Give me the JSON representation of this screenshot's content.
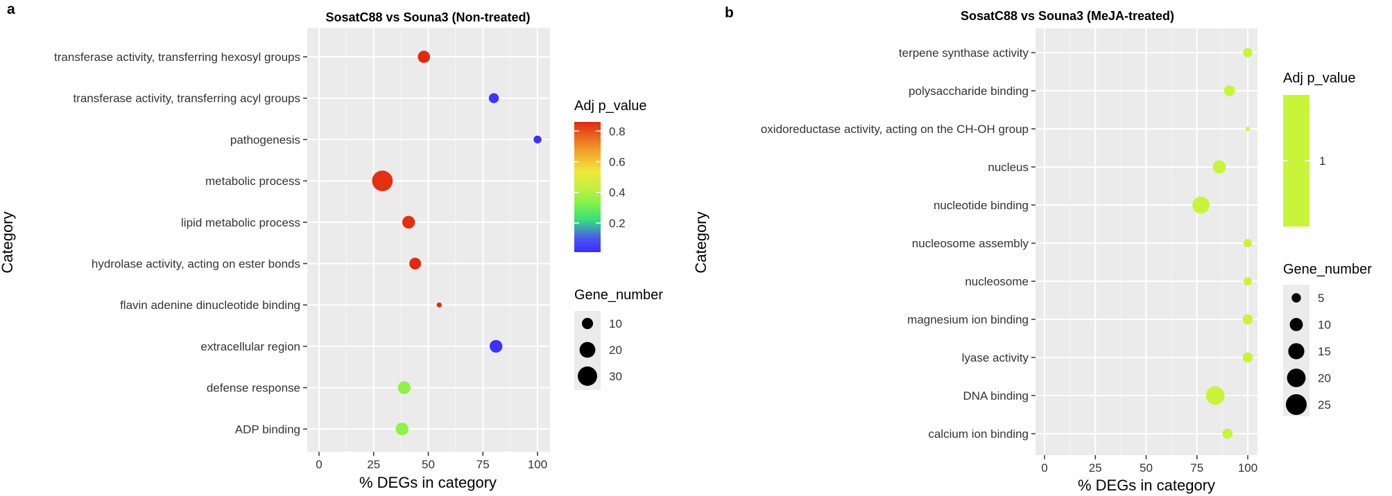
{
  "chart_data": [
    {
      "panel": "a",
      "type": "scatter",
      "title": "SosatC88 vs Souna3 (Non-treated)",
      "xlabel": "% DEGs in category",
      "ylabel": "Category",
      "xlim": [
        0,
        100
      ],
      "xticks": [
        0,
        25,
        50,
        75,
        100
      ],
      "tick_labels": [
        "0",
        "25",
        "50",
        "75",
        "100"
      ],
      "categories": [
        "transferase activity, transferring hexosyl groups",
        "transferase activity, transferring acyl groups",
        "pathogenesis",
        "metabolic process",
        "lipid metabolic process",
        "hydrolase activity, acting on ester bonds",
        "flavin adenine dinucleotide binding",
        "extracellular region",
        "defense response",
        "ADP binding"
      ],
      "x": [
        48,
        80,
        100,
        29,
        41,
        44,
        55,
        81,
        39,
        38
      ],
      "gene_number": [
        12,
        8,
        5,
        34,
        13,
        11,
        2,
        13,
        13,
        13
      ],
      "adj_p_value": [
        0.86,
        0.03,
        0.02,
        0.85,
        0.85,
        0.86,
        0.86,
        0.02,
        0.36,
        0.36
      ],
      "color_legend": {
        "title": "Adj p_value",
        "ticks": [
          0.8,
          0.6,
          0.4,
          0.2
        ],
        "tick_labels": [
          "0.8",
          "0.6",
          "0.4",
          "0.2"
        ],
        "range": [
          0.01,
          0.86
        ]
      },
      "size_legend": {
        "title": "Gene_number",
        "values": [
          10,
          20,
          30
        ],
        "labels": [
          "10",
          "20",
          "30"
        ]
      }
    },
    {
      "panel": "b",
      "type": "scatter",
      "title": "SosatC88 vs Souna3 (MeJA-treated)",
      "xlabel": "% DEGs in category",
      "ylabel": "Category",
      "xlim": [
        0,
        100
      ],
      "xticks": [
        0,
        25,
        50,
        75,
        100
      ],
      "tick_labels": [
        "0",
        "25",
        "50",
        "75",
        "100"
      ],
      "categories": [
        "terpene synthase activity",
        "polysaccharide binding",
        "oxidoreductase activity, acting on the CH-OH group",
        "nucleus",
        "nucleotide binding",
        "nucleosome assembly",
        "nucleosome",
        "magnesium ion binding",
        "lyase activity",
        "DNA binding",
        "calcium ion binding"
      ],
      "x": [
        100,
        91,
        100,
        86,
        77,
        100,
        100,
        100,
        100,
        84,
        90
      ],
      "gene_number": [
        5,
        7,
        1,
        10,
        17,
        4,
        4,
        6,
        6,
        20,
        6
      ],
      "adj_p_value": [
        1,
        1,
        1,
        1,
        1,
        1,
        1,
        1,
        1,
        1,
        1
      ],
      "color_legend": {
        "title": "Adj p_value",
        "ticks": [
          1
        ],
        "tick_labels": [
          "1"
        ],
        "color": "#c8f53a"
      },
      "size_legend": {
        "title": "Gene_number",
        "values": [
          5,
          10,
          15,
          20,
          25
        ],
        "labels": [
          "5",
          "10",
          "15",
          "20",
          "25"
        ]
      }
    }
  ]
}
